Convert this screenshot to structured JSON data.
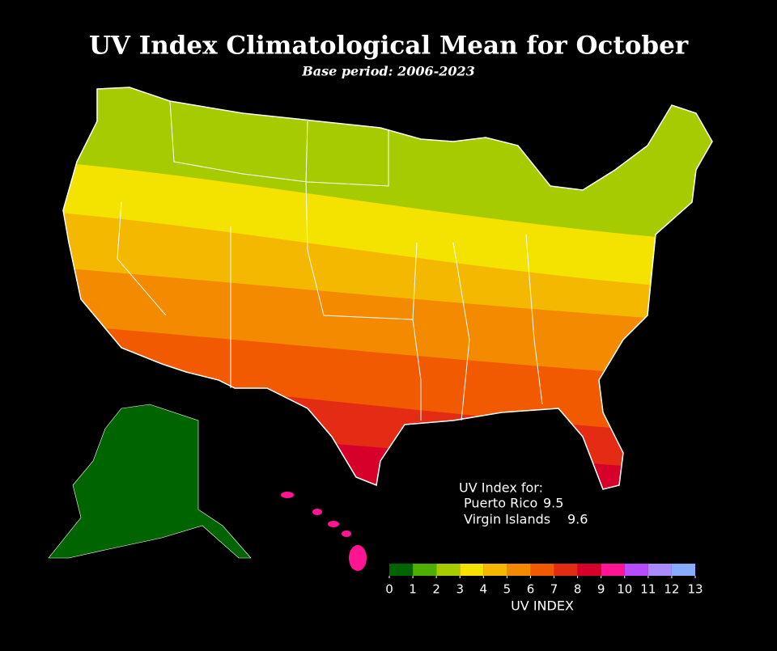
{
  "title": "UV Index Climatological Mean for October",
  "subtitle": "Base period: 2006-2023",
  "annotation": {
    "heading": "UV Index for:",
    "items": [
      {
        "name": "Puerto Rico",
        "value": 9.5
      },
      {
        "name": "Virgin Islands",
        "value": 9.6
      }
    ]
  },
  "colorbar": {
    "label": "UV INDEX",
    "ticks": [
      0,
      1,
      2,
      3,
      4,
      5,
      6,
      7,
      8,
      9,
      10,
      11,
      12,
      13
    ],
    "colors": [
      "#006400",
      "#4eaf00",
      "#a6cc00",
      "#f4e200",
      "#f4b800",
      "#f48a00",
      "#f25a00",
      "#e42c14",
      "#d6002a",
      "#ff1493",
      "#b74cff",
      "#a88cff",
      "#88aaff"
    ]
  }
}
